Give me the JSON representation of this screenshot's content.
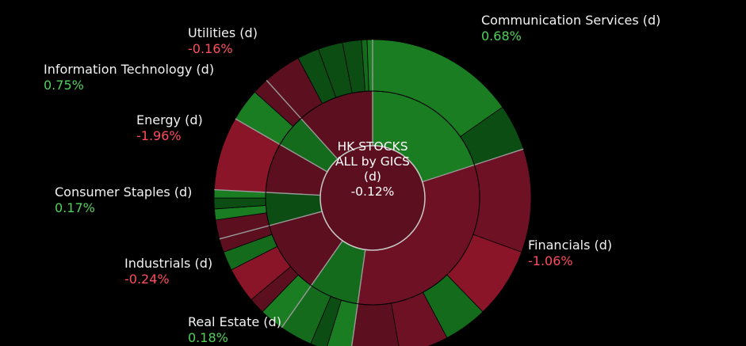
{
  "chart_data": {
    "type": "sunburst",
    "center": {
      "line1": "HK STOCKS",
      "line2": "ALL by GICS",
      "line3": "(d)",
      "value": "-0.12%"
    },
    "sectors": [
      {
        "name": "Communication Services (d)",
        "change": "0.68%",
        "sign": "pos"
      },
      {
        "name": "Financials (d)",
        "change": "-1.06%",
        "sign": "neg"
      },
      {
        "name": "Real Estate (d)",
        "change": "0.18%",
        "sign": "pos"
      },
      {
        "name": "Industrials (d)",
        "change": "-0.24%",
        "sign": "neg"
      },
      {
        "name": "Consumer Staples (d)",
        "change": "0.17%",
        "sign": "pos"
      },
      {
        "name": "Energy (d)",
        "change": "-1.96%",
        "sign": "neg"
      },
      {
        "name": "Information Technology (d)",
        "change": "0.75%",
        "sign": "pos"
      },
      {
        "name": "Utilities (d)",
        "change": "-0.16%",
        "sign": "neg"
      }
    ],
    "colors": {
      "pos_dark": "#0b4d12",
      "pos_mid": "#136b1b",
      "pos_bright": "#1b7d22",
      "neg_dark": "#5c0f1e",
      "neg_mid": "#6e1124",
      "neg_bright": "#8a1428",
      "divider": "#9a9a9a"
    }
  }
}
